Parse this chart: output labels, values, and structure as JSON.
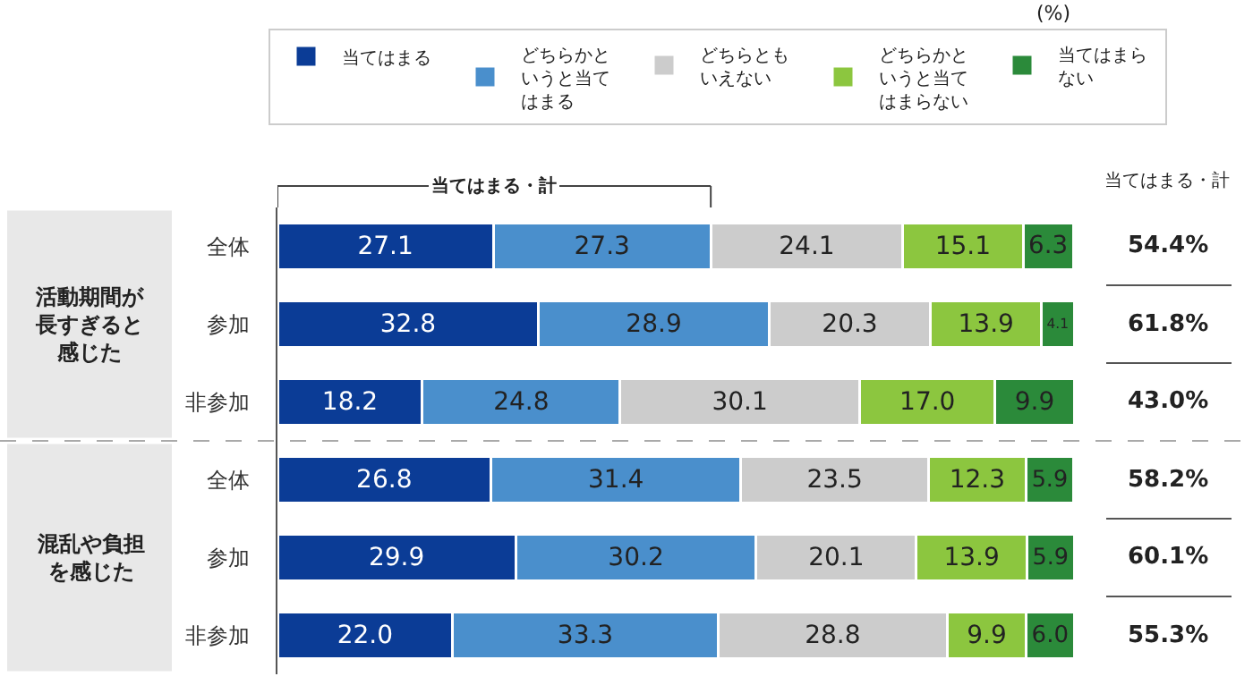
{
  "chart_data": {
    "type": "bar",
    "orientation": "horizontal",
    "stacked": true,
    "legend": "top",
    "categories": [
      "全体",
      "参加",
      "非参加",
      "全体",
      "参加",
      "非参加"
    ],
    "series": [
      {
        "name": "当てはまる",
        "color": "#0b3c96",
        "values": [
          27.1,
          32.8,
          18.2,
          26.8,
          29.9,
          22.0
        ],
        "value_labels": [
          "27.1",
          "32.8",
          "18.2",
          "26.8",
          "29.9",
          "22.0"
        ]
      },
      {
        "name": "どちらかというと当てはまる",
        "color": "#4a8fcc",
        "values": [
          27.3,
          28.9,
          24.8,
          31.4,
          30.2,
          33.3
        ],
        "value_labels": [
          "27.3",
          "28.9",
          "24.8",
          "31.4",
          "30.2",
          "33.3"
        ]
      },
      {
        "name": "どちらともいえない",
        "color": "#cccccc",
        "values": [
          24.1,
          20.3,
          30.1,
          23.5,
          20.1,
          28.8
        ],
        "value_labels": [
          "24.1",
          "20.3",
          "30.1",
          "23.5",
          "20.1",
          "28.8"
        ]
      },
      {
        "name": "どちらかというと当てはまらない",
        "color": "#8cc63f",
        "values": [
          15.1,
          13.9,
          17.0,
          12.3,
          13.9,
          9.9
        ],
        "value_labels": [
          "15.1",
          "13.9",
          "17.0",
          "12.3",
          "13.9",
          "9.9"
        ]
      },
      {
        "name": "当てはまらない",
        "color": "#2b8a3a",
        "values": [
          6.3,
          4.1,
          9.9,
          5.9,
          5.9,
          6.0
        ],
        "value_labels": [
          "6.3",
          "4.1",
          "9.9",
          "5.9",
          "5.9",
          "6.0"
        ]
      }
    ],
    "annotations": [
      "(%)",
      "当てはまる・計",
      "当てはまる・計",
      "活動期間が長すぎると感じた",
      "混乱や負担を感じた",
      "54.4%",
      "61.8%",
      "43.0%",
      "58.2%",
      "60.1%",
      "55.3%"
    ]
  }
}
